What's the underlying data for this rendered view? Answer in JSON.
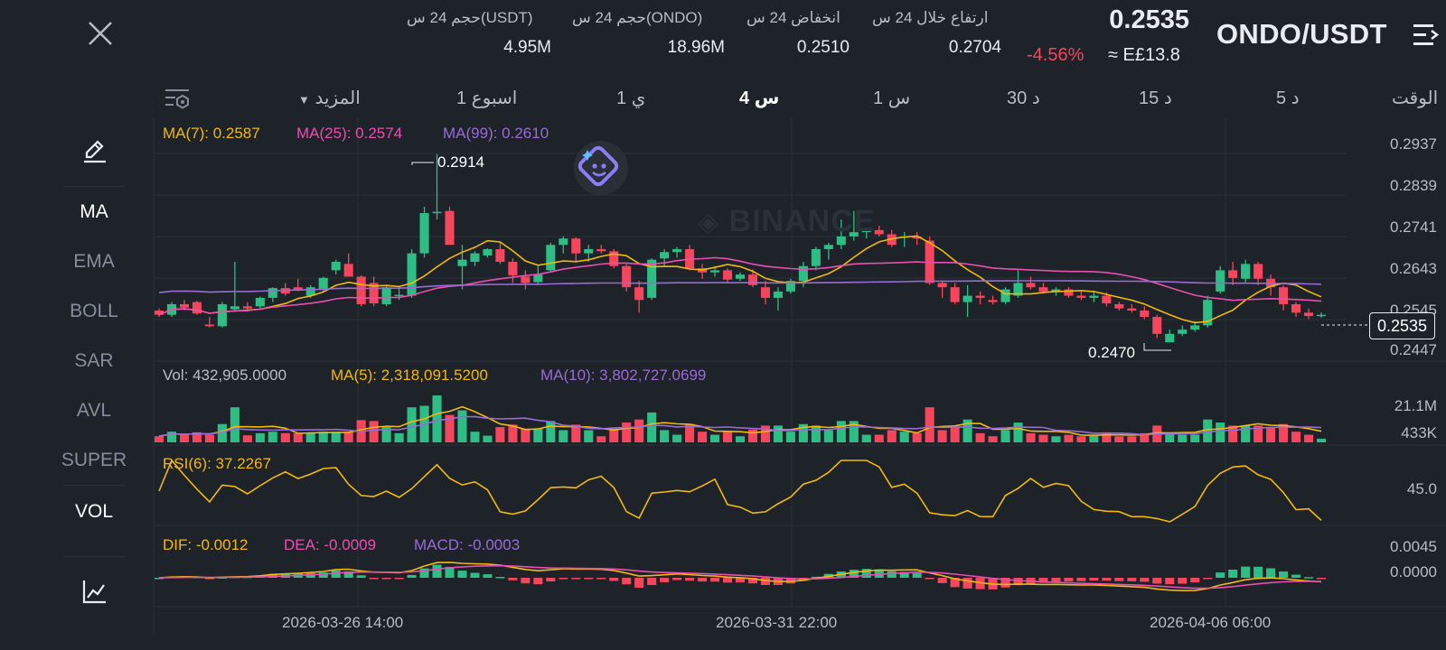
{
  "header": {
    "pair": "ONDO/USDT",
    "price": "0.2535",
    "change_pct": "-4.56%",
    "fiat_price": "≈ E£13.8",
    "stats": [
      {
        "label": "ارتفاع خلال 24 س",
        "value": "0.2704"
      },
      {
        "label": "انخفاض 24 س",
        "value": "0.2510"
      },
      {
        "label": "حجم 24 س(ONDO)",
        "value": "18.96M"
      },
      {
        "label": "حجم 24 س(USDT)",
        "value": "4.95M"
      }
    ]
  },
  "timeframes": {
    "label": "الوقت",
    "items": [
      "5 د",
      "15 د",
      "30 د",
      "1 س",
      "4 س",
      "1 ي",
      "1 اسبوع"
    ],
    "active": "4 س",
    "more": "المزيد"
  },
  "sidebar": {
    "items": [
      "MA",
      "EMA",
      "BOLL",
      "SAR",
      "AVL",
      "SUPER",
      "VOL"
    ],
    "active": [
      "MA",
      "VOL"
    ]
  },
  "indicators": {
    "ma7": "MA(7): 0.2587",
    "ma25": "MA(25): 0.2574",
    "ma99": "MA(99): 0.2610",
    "vol": "Vol: 432,905.0000",
    "vol_ma5": "MA(5): 2,318,091.5200",
    "vol_ma10": "MA(10): 3,802,727.0699",
    "rsi": "RSI(6): 37.2267",
    "dif": "DIF: -0.0012",
    "dea": "DEA: -0.0009",
    "macd": "MACD: -0.0003"
  },
  "price_axis": [
    "0.2937",
    "0.2839",
    "0.2741",
    "0.2643",
    "0.2545",
    "0.2447"
  ],
  "current_price": "0.2535",
  "high_marker": "0.2914",
  "low_marker": "0.2470",
  "vol_axis": [
    "21.1M",
    "433K"
  ],
  "rsi_axis": [
    "45.0"
  ],
  "macd_axis": [
    "0.0045",
    "0.0000"
  ],
  "time_axis": [
    "2026-03-26 14:00",
    "2026-03-31 22:00",
    "2026-04-06 06:00"
  ],
  "watermark": "BINANCE",
  "colors": {
    "up": "#2ebd85",
    "down": "#f6465d",
    "ma7": "#f0b90b",
    "ma25": "#e84fb0",
    "ma99": "#9a6bd6",
    "bg": "#1e2329",
    "grid": "#2b3139"
  },
  "chart_data": {
    "type": "candlestick",
    "price_range": [
      0.2447,
      0.2937
    ],
    "candles_ohlc": [
      [
        0.2545,
        0.255,
        0.253,
        0.2535
      ],
      [
        0.2535,
        0.2565,
        0.253,
        0.256
      ],
      [
        0.256,
        0.257,
        0.2545,
        0.2552
      ],
      [
        0.2565,
        0.2568,
        0.2535,
        0.2538
      ],
      [
        0.2512,
        0.253,
        0.2505,
        0.2508
      ],
      [
        0.2508,
        0.2565,
        0.2505,
        0.256
      ],
      [
        0.2548,
        0.266,
        0.2545,
        0.2555
      ],
      [
        0.2555,
        0.2565,
        0.2542,
        0.255
      ],
      [
        0.2555,
        0.2578,
        0.2548,
        0.2575
      ],
      [
        0.2575,
        0.26,
        0.2565,
        0.2598
      ],
      [
        0.2598,
        0.261,
        0.258,
        0.2585
      ],
      [
        0.26,
        0.262,
        0.259,
        0.2592
      ],
      [
        0.258,
        0.2605,
        0.2575,
        0.26
      ],
      [
        0.2595,
        0.2625,
        0.259,
        0.2622
      ],
      [
        0.264,
        0.2665,
        0.263,
        0.266
      ],
      [
        0.2655,
        0.268,
        0.2645,
        0.2625
      ],
      [
        0.2625,
        0.2628,
        0.2555,
        0.256
      ],
      [
        0.261,
        0.2625,
        0.2555,
        0.2562
      ],
      [
        0.256,
        0.2605,
        0.2555,
        0.26
      ],
      [
        0.258,
        0.26,
        0.257,
        0.2582
      ],
      [
        0.258,
        0.269,
        0.2575,
        0.268
      ],
      [
        0.268,
        0.279,
        0.267,
        0.2775
      ],
      [
        0.2775,
        0.2914,
        0.276,
        0.2778
      ],
      [
        0.278,
        0.279,
        0.27,
        0.27
      ],
      [
        0.265,
        0.27,
        0.2595,
        0.2665
      ],
      [
        0.266,
        0.2685,
        0.265,
        0.268
      ],
      [
        0.2675,
        0.2692,
        0.267,
        0.269
      ],
      [
        0.269,
        0.2705,
        0.2655,
        0.266
      ],
      [
        0.266,
        0.2668,
        0.261,
        0.2628
      ],
      [
        0.2625,
        0.264,
        0.2595,
        0.261
      ],
      [
        0.2612,
        0.265,
        0.2605,
        0.263
      ],
      [
        0.264,
        0.2705,
        0.2635,
        0.27
      ],
      [
        0.27,
        0.272,
        0.268,
        0.2715
      ],
      [
        0.2715,
        0.2718,
        0.266,
        0.268
      ],
      [
        0.268,
        0.27,
        0.266,
        0.269
      ],
      [
        0.269,
        0.27,
        0.268,
        0.2685
      ],
      [
        0.2685,
        0.269,
        0.2645,
        0.265
      ],
      [
        0.265,
        0.2655,
        0.259,
        0.26
      ],
      [
        0.26,
        0.2615,
        0.254,
        0.257
      ],
      [
        0.2575,
        0.2668,
        0.257,
        0.2665
      ],
      [
        0.2668,
        0.269,
        0.265,
        0.2683
      ],
      [
        0.2683,
        0.2695,
        0.267,
        0.269
      ],
      [
        0.269,
        0.27,
        0.264,
        0.2645
      ],
      [
        0.2645,
        0.2655,
        0.262,
        0.2635
      ],
      [
        0.2635,
        0.265,
        0.2625,
        0.264
      ],
      [
        0.264,
        0.2645,
        0.261,
        0.2618
      ],
      [
        0.262,
        0.2635,
        0.2615,
        0.263
      ],
      [
        0.263,
        0.2642,
        0.26,
        0.2605
      ],
      [
        0.26,
        0.2615,
        0.256,
        0.2575
      ],
      [
        0.2575,
        0.26,
        0.2545,
        0.259
      ],
      [
        0.259,
        0.262,
        0.2585,
        0.2615
      ],
      [
        0.2615,
        0.266,
        0.26,
        0.265
      ],
      [
        0.265,
        0.2695,
        0.264,
        0.269
      ],
      [
        0.269,
        0.2705,
        0.2665,
        0.27
      ],
      [
        0.27,
        0.276,
        0.269,
        0.272
      ],
      [
        0.272,
        0.278,
        0.271,
        0.273
      ],
      [
        0.273,
        0.274,
        0.2715,
        0.2735
      ],
      [
        0.2735,
        0.2745,
        0.272,
        0.2725
      ],
      [
        0.2725,
        0.2735,
        0.2695,
        0.27
      ],
      [
        0.2718,
        0.273,
        0.2695,
        0.272
      ],
      [
        0.272,
        0.273,
        0.27,
        0.2715
      ],
      [
        0.271,
        0.272,
        0.2605,
        0.261
      ],
      [
        0.261,
        0.2615,
        0.2575,
        0.26
      ],
      [
        0.26,
        0.261,
        0.256,
        0.2565
      ],
      [
        0.2565,
        0.2605,
        0.253,
        0.258
      ],
      [
        0.258,
        0.259,
        0.256,
        0.2575
      ],
      [
        0.257,
        0.258,
        0.256,
        0.2565
      ],
      [
        0.2565,
        0.26,
        0.256,
        0.2595
      ],
      [
        0.258,
        0.264,
        0.2575,
        0.261
      ],
      [
        0.261,
        0.2625,
        0.2595,
        0.26
      ],
      [
        0.26,
        0.261,
        0.2585,
        0.259
      ],
      [
        0.259,
        0.26,
        0.258,
        0.2595
      ],
      [
        0.2595,
        0.26,
        0.2575,
        0.258
      ],
      [
        0.258,
        0.259,
        0.257,
        0.2575
      ],
      [
        0.2575,
        0.259,
        0.2565,
        0.258
      ],
      [
        0.258,
        0.2588,
        0.2555,
        0.2562
      ],
      [
        0.256,
        0.2565,
        0.2545,
        0.255
      ],
      [
        0.255,
        0.256,
        0.254,
        0.2545
      ],
      [
        0.2545,
        0.2555,
        0.2525,
        0.253
      ],
      [
        0.253,
        0.2535,
        0.248,
        0.249
      ],
      [
        0.247,
        0.25,
        0.247,
        0.249
      ],
      [
        0.249,
        0.251,
        0.2485,
        0.25
      ],
      [
        0.25,
        0.252,
        0.2495,
        0.251
      ],
      [
        0.251,
        0.258,
        0.2505,
        0.257
      ],
      [
        0.259,
        0.265,
        0.2585,
        0.264
      ],
      [
        0.264,
        0.266,
        0.2605,
        0.2622
      ],
      [
        0.262,
        0.2665,
        0.261,
        0.2655
      ],
      [
        0.2655,
        0.266,
        0.2605,
        0.262
      ],
      [
        0.262,
        0.263,
        0.258,
        0.26
      ],
      [
        0.26,
        0.2605,
        0.2545,
        0.256
      ],
      [
        0.256,
        0.2565,
        0.253,
        0.254
      ],
      [
        0.254,
        0.255,
        0.2525,
        0.2532
      ],
      [
        0.2532,
        0.254,
        0.2528,
        0.2535
      ]
    ]
  }
}
